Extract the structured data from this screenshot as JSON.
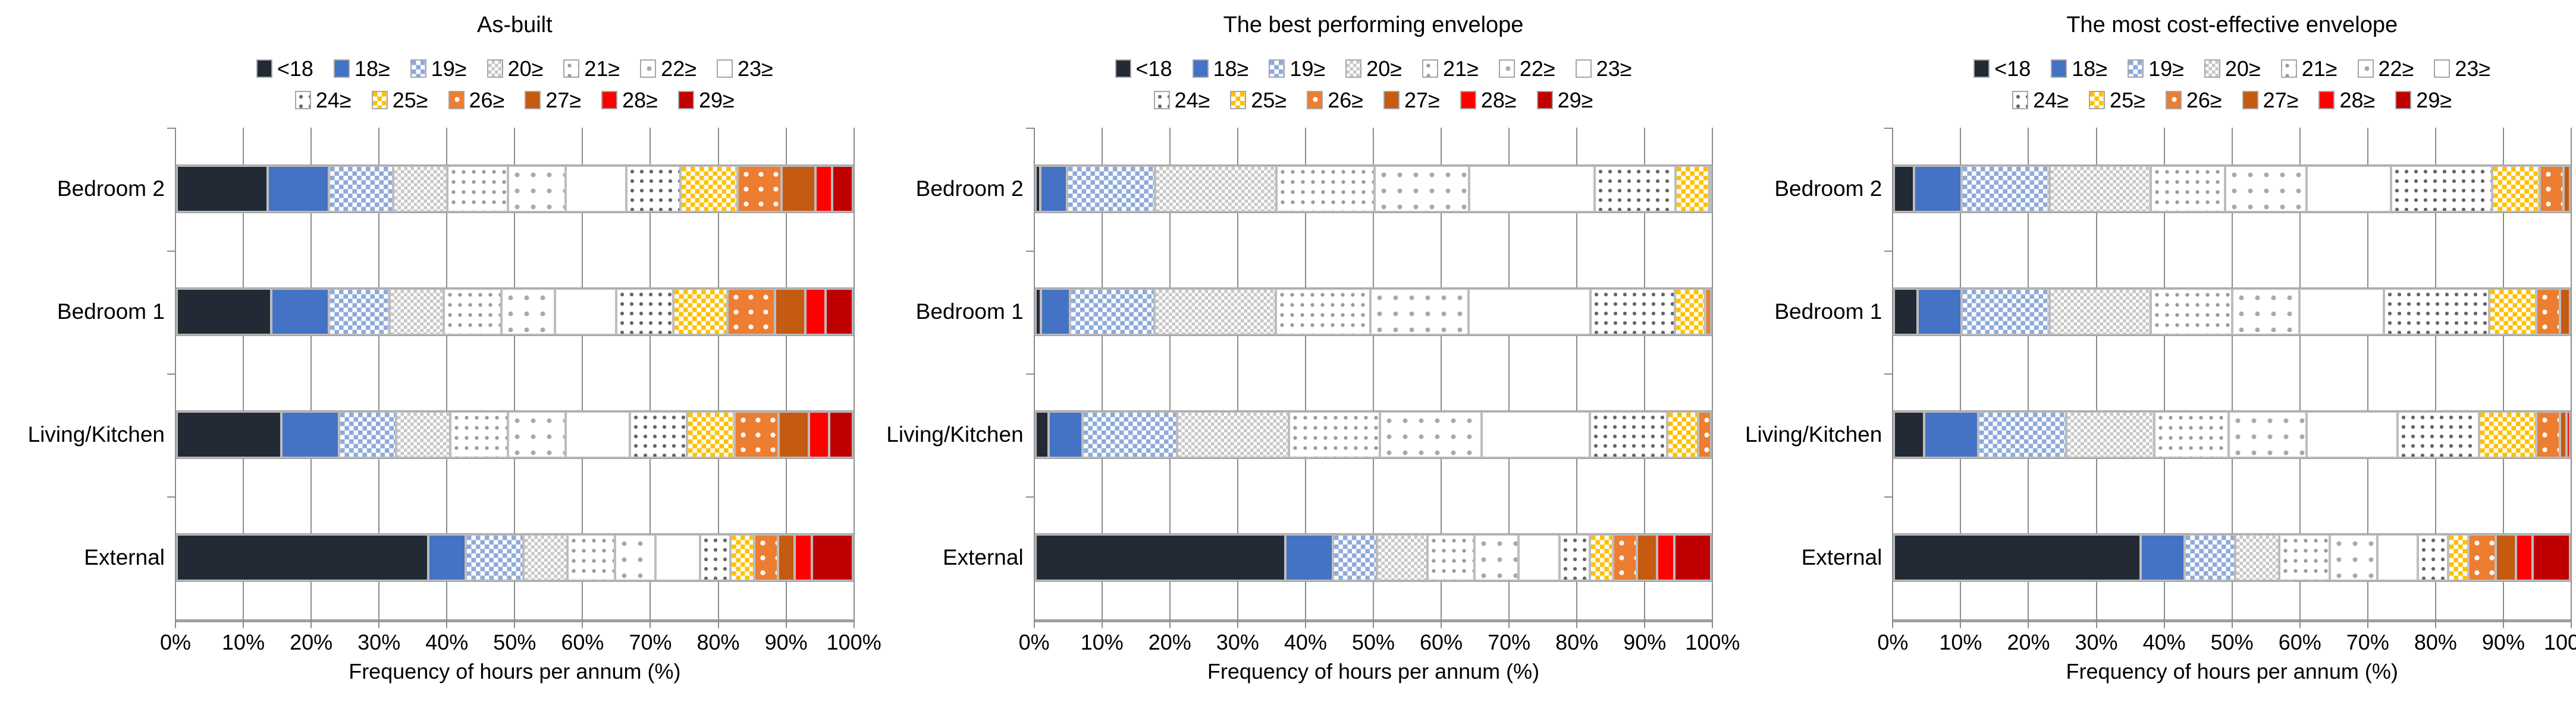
{
  "figure": {
    "x_tick_labels": [
      "0%",
      "10%",
      "20%",
      "30%",
      "40%",
      "50%",
      "60%",
      "70%",
      "80%",
      "90%",
      "100%"
    ],
    "x_axis_title": "Frequency of hours per annum (%)",
    "legend_rows": [
      [
        0,
        1,
        2,
        3,
        4,
        5,
        6
      ],
      [
        7,
        8,
        9,
        10,
        11,
        12
      ]
    ],
    "series_styles": [
      {
        "key": "lt18",
        "name": "<18",
        "color": "#222A35",
        "pattern": "solid"
      },
      {
        "key": "ge18",
        "name": "18≥",
        "color": "#4472C4",
        "pattern": "solid"
      },
      {
        "key": "ge19",
        "name": "19≥",
        "color": "#8EAADB",
        "pattern": "white-checker"
      },
      {
        "key": "ge20",
        "name": "20≥",
        "color": "#FFFFFF",
        "pattern": "gray-checker"
      },
      {
        "key": "ge21",
        "name": "21≥",
        "color": "#FFFFFF",
        "pattern": "gray-dots"
      },
      {
        "key": "ge22",
        "name": "22≥",
        "color": "#FFFFFF",
        "pattern": "gray-dots-sparse"
      },
      {
        "key": "ge23",
        "name": "23≥",
        "color": "#FFFFFF",
        "pattern": "solid"
      },
      {
        "key": "ge24",
        "name": "24≥",
        "color": "#FFFFFF",
        "pattern": "dark-dots"
      },
      {
        "key": "ge25",
        "name": "25≥",
        "color": "#FFC000",
        "pattern": "white-checker"
      },
      {
        "key": "ge26",
        "name": "26≥",
        "color": "#ED7D31",
        "pattern": "white-dots-sparse"
      },
      {
        "key": "ge27",
        "name": "27≥",
        "color": "#C55A11",
        "pattern": "solid"
      },
      {
        "key": "ge28",
        "name": "28≥",
        "color": "#FF0000",
        "pattern": "solid"
      },
      {
        "key": "ge29",
        "name": "29≥",
        "color": "#C00000",
        "pattern": "solid"
      }
    ],
    "gridline_color": "#8c8c8c",
    "axis_color": "#9e9e9e"
  },
  "chart_data": [
    {
      "type": "bar",
      "orientation": "horizontal",
      "stacked": true,
      "title": "As-built",
      "xlabel": "Frequency of hours per annum (%)",
      "xlim": [
        0,
        100
      ],
      "categories": [
        "Bedroom 2",
        "Bedroom 1",
        "Living/Kitchen",
        "External"
      ],
      "series": [
        {
          "name": "<18",
          "values": [
            13.5,
            14,
            15.5,
            37
          ]
        },
        {
          "name": "18≥",
          "values": [
            9,
            8.5,
            8.5,
            5.5
          ]
        },
        {
          "name": "19≥",
          "values": [
            9.5,
            9,
            8.5,
            8.5
          ]
        },
        {
          "name": "20≥",
          "values": [
            8,
            8,
            8,
            6.5
          ]
        },
        {
          "name": "21≥",
          "values": [
            9,
            8.5,
            8.5,
            7
          ]
        },
        {
          "name": "22≥",
          "values": [
            8.5,
            8,
            8.5,
            6
          ]
        },
        {
          "name": "23≥",
          "values": [
            9,
            9,
            9.5,
            6.5
          ]
        },
        {
          "name": "24≥",
          "values": [
            8,
            8.5,
            8.5,
            4.5
          ]
        },
        {
          "name": "25≥",
          "values": [
            8.5,
            8,
            7,
            3.5
          ]
        },
        {
          "name": "26≥",
          "values": [
            6.5,
            7,
            6.5,
            3.5
          ]
        },
        {
          "name": "27≥",
          "values": [
            5,
            4.5,
            4.5,
            2.5
          ]
        },
        {
          "name": "28≥",
          "values": [
            2.5,
            3,
            3,
            2.5
          ]
        },
        {
          "name": "29≥",
          "values": [
            3,
            4,
            3.5,
            6
          ]
        }
      ]
    },
    {
      "type": "bar",
      "orientation": "horizontal",
      "stacked": true,
      "title": "The best performing envelope",
      "xlabel": "Frequency of hours per annum (%)",
      "xlim": [
        0,
        100
      ],
      "categories": [
        "Bedroom 2",
        "Bedroom 1",
        "Living/Kitchen",
        "External"
      ],
      "series": [
        {
          "name": "<18",
          "values": [
            0.7,
            0.8,
            2,
            37
          ]
        },
        {
          "name": "18≥",
          "values": [
            4,
            4.3,
            5,
            7
          ]
        },
        {
          "name": "19≥",
          "values": [
            13,
            12.5,
            14,
            6.5
          ]
        },
        {
          "name": "20≥",
          "values": [
            18,
            18,
            16.5,
            7.5
          ]
        },
        {
          "name": "21≥",
          "values": [
            14.5,
            14,
            13.5,
            7
          ]
        },
        {
          "name": "22≥",
          "values": [
            14,
            14.5,
            15,
            6.5
          ]
        },
        {
          "name": "23≥",
          "values": [
            18.5,
            18,
            16,
            6
          ]
        },
        {
          "name": "24≥",
          "values": [
            12,
            12.5,
            11.5,
            4.5
          ]
        },
        {
          "name": "25≥",
          "values": [
            5,
            4.5,
            4.5,
            3.5
          ]
        },
        {
          "name": "26≥",
          "values": [
            0.3,
            0.9,
            2,
            3.5
          ]
        },
        {
          "name": "27≥",
          "values": [
            0,
            0,
            0,
            3
          ]
        },
        {
          "name": "28≥",
          "values": [
            0,
            0,
            0,
            2.5
          ]
        },
        {
          "name": "29≥",
          "values": [
            0,
            0,
            0,
            5.5
          ]
        }
      ]
    },
    {
      "type": "bar",
      "orientation": "horizontal",
      "stacked": true,
      "title": "The most cost-effective envelope",
      "xlabel": "Frequency of hours per annum (%)",
      "xlim": [
        0,
        100
      ],
      "categories": [
        "Bedroom 2",
        "Bedroom 1",
        "Living/Kitchen",
        "External"
      ],
      "series": [
        {
          "name": "<18",
          "values": [
            3,
            3.5,
            4.5,
            36.5
          ]
        },
        {
          "name": "18≥",
          "values": [
            7,
            6.5,
            8,
            6.5
          ]
        },
        {
          "name": "19≥",
          "values": [
            13,
            13,
            13,
            7.5
          ]
        },
        {
          "name": "20≥",
          "values": [
            15,
            15,
            13,
            6.5
          ]
        },
        {
          "name": "21≥",
          "values": [
            11,
            12,
            11,
            7.5
          ]
        },
        {
          "name": "22≥",
          "values": [
            12,
            10,
            11.5,
            7
          ]
        },
        {
          "name": "23≥",
          "values": [
            12.5,
            12.5,
            13.5,
            6
          ]
        },
        {
          "name": "24≥",
          "values": [
            15,
            15.5,
            12,
            4.5
          ]
        },
        {
          "name": "25≥",
          "values": [
            7,
            7,
            8.5,
            3
          ]
        },
        {
          "name": "26≥",
          "values": [
            3.5,
            3.5,
            3.5,
            4
          ]
        },
        {
          "name": "27≥",
          "values": [
            1,
            1.5,
            1,
            3
          ]
        },
        {
          "name": "28≥",
          "values": [
            0,
            0,
            0.5,
            2.5
          ]
        },
        {
          "name": "29≥",
          "values": [
            0,
            0,
            0,
            5.5
          ]
        }
      ]
    }
  ]
}
